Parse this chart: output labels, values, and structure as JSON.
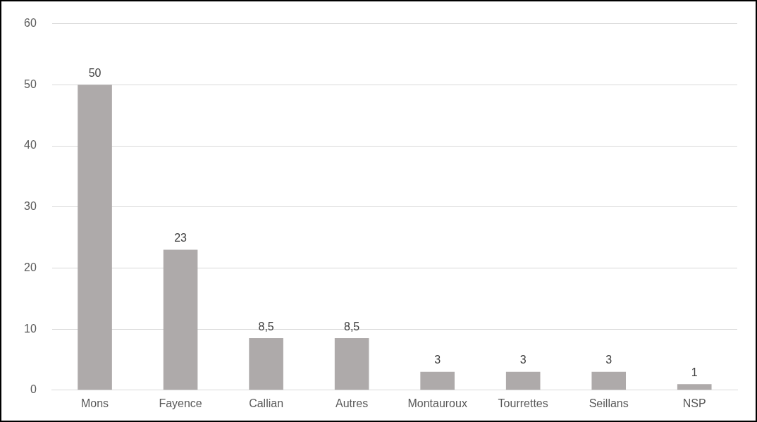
{
  "chart_data": {
    "type": "bar",
    "categories": [
      "Mons",
      "Fayence",
      "Callian",
      "Autres",
      "Montauroux",
      "Tourrettes",
      "Seillans",
      "NSP"
    ],
    "values": [
      50,
      23,
      8.5,
      8.5,
      3,
      3,
      3,
      1
    ],
    "value_labels": [
      "50",
      "23",
      "8,5",
      "8,5",
      "3",
      "3",
      "3",
      "1"
    ],
    "color": "#aeaaaa",
    "ylim": [
      0,
      60
    ],
    "yticks": [
      0,
      10,
      20,
      30,
      40,
      50,
      60
    ],
    "grid": "y",
    "legend": false
  }
}
